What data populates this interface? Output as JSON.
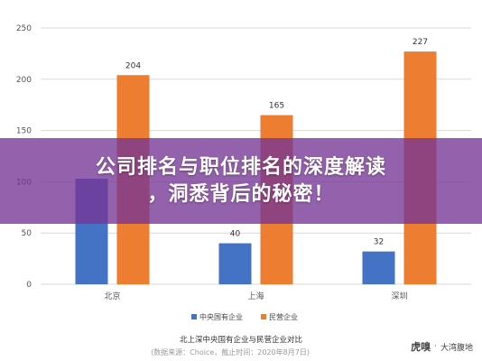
{
  "chart_data": {
    "type": "bar",
    "title": "北上深中央国有企业与民营企业对比",
    "source": "(数据来源：Choice，截止时间：2020年8月7日)",
    "categories": [
      "北京",
      "上海",
      "深圳"
    ],
    "series": [
      {
        "name": "中央国有企业",
        "color": "#4472c4",
        "values": [
          103,
          40,
          32
        ],
        "labels": [
          "",
          "40",
          "32"
        ]
      },
      {
        "name": "民营企业",
        "color": "#ed7d31",
        "values": [
          204,
          165,
          227
        ],
        "labels": [
          "204",
          "165",
          "227"
        ]
      }
    ],
    "ylim": [
      0,
      250
    ],
    "yticks": [
      0,
      50,
      100,
      150,
      200,
      250
    ],
    "grid": true,
    "legend": "bottom"
  },
  "overlay": {
    "line1": "公司排名与职位排名的深度解读",
    "line2": "，洞悉背后的秘密！"
  },
  "watermark": {
    "logo": "虎嗅",
    "sep": "·",
    "text": "大湾腹地"
  }
}
